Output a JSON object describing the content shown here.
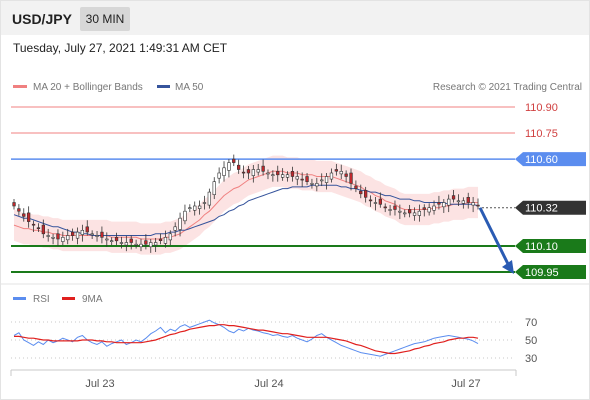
{
  "header": {
    "symbol": "USD/JPY",
    "timeframe": "30 MIN",
    "datetime": "Tuesday, July 27, 2021 1:49:31 AM CET"
  },
  "legend": {
    "ma20_label": "MA 20 + Bollinger Bands",
    "ma50_label": "MA 50",
    "credit": "Research © 2021 Trading Central"
  },
  "rsi_legend": {
    "rsi_label": "RSI",
    "ma_label": "9MA"
  },
  "colors": {
    "resistance": "#f08080",
    "pivot": "#5b8def",
    "support": "#1a7a1a",
    "current": "#333333",
    "candle_up": "#ffffff",
    "candle_down": "#c0282d",
    "bollinger": "#fcdede",
    "ma50": "#36549c",
    "arrow": "#2a5bb3",
    "rsi": "#5b8def",
    "rsi_ma": "#e0201e"
  },
  "chart_data": [
    {
      "type": "candlestick",
      "title": "USD/JPY",
      "ylim": [
        109.92,
        110.96
      ],
      "levels": [
        {
          "label": "110.90",
          "value": 110.9,
          "kind": "resistance"
        },
        {
          "label": "110.75",
          "value": 110.75,
          "kind": "resistance"
        },
        {
          "label": "110.60",
          "value": 110.6,
          "kind": "pivot"
        },
        {
          "label": "110.32",
          "value": 110.32,
          "kind": "current"
        },
        {
          "label": "110.10",
          "value": 110.1,
          "kind": "support"
        },
        {
          "label": "109.95",
          "value": 109.95,
          "kind": "support"
        }
      ],
      "x_ticks": [
        "Jul 23",
        "Jul 24",
        "Jul 27"
      ],
      "close": [
        110.33,
        110.3,
        110.27,
        110.24,
        110.22,
        110.2,
        110.17,
        110.16,
        110.15,
        110.14,
        110.15,
        110.16,
        110.16,
        110.18,
        110.19,
        110.18,
        110.17,
        110.16,
        110.15,
        110.14,
        110.13,
        110.13,
        110.12,
        110.12,
        110.12,
        110.11,
        110.11,
        110.11,
        110.12,
        110.12,
        110.13,
        110.15,
        110.17,
        110.21,
        110.26,
        110.3,
        110.32,
        110.33,
        110.33,
        110.35,
        110.41,
        110.47,
        110.52,
        110.55,
        110.58,
        110.58,
        110.54,
        110.52,
        110.52,
        110.54,
        110.54,
        110.53,
        110.52,
        110.51,
        110.51,
        110.51,
        110.51,
        110.5,
        110.5,
        110.48,
        110.47,
        110.46,
        110.46,
        110.48,
        110.5,
        110.52,
        110.53,
        110.53,
        110.5,
        110.46,
        110.43,
        110.4,
        110.38,
        110.36,
        110.35,
        110.34,
        110.32,
        110.31,
        110.31,
        110.3,
        110.29,
        110.29,
        110.29,
        110.3,
        110.31,
        110.32,
        110.33,
        110.34,
        110.35,
        110.37,
        110.37,
        110.36,
        110.36,
        110.35,
        110.35,
        110.33
      ],
      "ma20": [
        110.22,
        110.21,
        110.2,
        110.2,
        110.19,
        110.19,
        110.18,
        110.18,
        110.17,
        110.17,
        110.16,
        110.16,
        110.16,
        110.16,
        110.16,
        110.16,
        110.16,
        110.16,
        110.16,
        110.16,
        110.15,
        110.15,
        110.15,
        110.15,
        110.15,
        110.15,
        110.14,
        110.14,
        110.14,
        110.14,
        110.14,
        110.15,
        110.15,
        110.16,
        110.17,
        110.19,
        110.21,
        110.23,
        110.25,
        110.28,
        110.3,
        110.33,
        110.36,
        110.39,
        110.41,
        110.43,
        110.44,
        110.46,
        110.48,
        110.49,
        110.5,
        110.51,
        110.52,
        110.53,
        110.53,
        110.53,
        110.52,
        110.52,
        110.52,
        110.51,
        110.51,
        110.51,
        110.5,
        110.5,
        110.5,
        110.5,
        110.49,
        110.48,
        110.47,
        110.46,
        110.45,
        110.44,
        110.42,
        110.41,
        110.39,
        110.38,
        110.36,
        110.35,
        110.34,
        110.32,
        110.31,
        110.31,
        110.31,
        110.31,
        110.31,
        110.31,
        110.32,
        110.32,
        110.33,
        110.33,
        110.34,
        110.34,
        110.34,
        110.35,
        110.35,
        110.35
      ],
      "ma50": [
        110.28,
        110.27,
        110.26,
        110.26,
        110.25,
        110.24,
        110.23,
        110.22,
        110.21,
        110.21,
        110.2,
        110.19,
        110.18,
        110.18,
        110.17,
        110.17,
        110.16,
        110.16,
        110.16,
        110.16,
        110.16,
        110.16,
        110.16,
        110.16,
        110.16,
        110.16,
        110.16,
        110.16,
        110.16,
        110.17,
        110.17,
        110.17,
        110.18,
        110.18,
        110.19,
        110.19,
        110.2,
        110.21,
        110.22,
        110.23,
        110.24,
        110.25,
        110.27,
        110.28,
        110.3,
        110.31,
        110.33,
        110.34,
        110.36,
        110.37,
        110.38,
        110.39,
        110.4,
        110.41,
        110.42,
        110.43,
        110.43,
        110.44,
        110.44,
        110.44,
        110.44,
        110.45,
        110.45,
        110.45,
        110.45,
        110.45,
        110.45,
        110.44,
        110.44,
        110.43,
        110.43,
        110.42,
        110.42,
        110.41,
        110.41,
        110.4,
        110.39,
        110.39,
        110.38,
        110.37,
        110.37,
        110.37,
        110.36,
        110.36,
        110.35,
        110.35,
        110.35,
        110.35,
        110.35,
        110.34,
        110.34,
        110.34,
        110.34,
        110.34,
        110.34,
        110.33
      ],
      "forecast": {
        "from": 110.32,
        "to": 109.95
      }
    },
    {
      "type": "line",
      "title": "RSI",
      "ylim": [
        20,
        80
      ],
      "y_ticks": [
        70,
        50,
        30
      ],
      "series": [
        {
          "name": "RSI",
          "values": [
            55,
            58,
            50,
            47,
            44,
            48,
            45,
            50,
            47,
            49,
            52,
            50,
            48,
            53,
            55,
            50,
            47,
            45,
            48,
            43,
            46,
            48,
            50,
            45,
            47,
            50,
            48,
            52,
            57,
            60,
            64,
            58,
            62,
            60,
            65,
            67,
            64,
            66,
            68,
            70,
            72,
            69,
            67,
            64,
            60,
            58,
            62,
            60,
            63,
            61,
            60,
            58,
            57,
            55,
            56,
            54,
            53,
            55,
            52,
            50,
            48,
            51,
            55,
            57,
            53,
            50,
            47,
            44,
            42,
            40,
            38,
            36,
            35,
            34,
            33,
            32,
            34,
            36,
            38,
            40,
            42,
            44,
            46,
            47,
            48,
            50,
            52,
            53,
            54,
            55,
            54,
            53,
            52,
            51,
            49,
            46
          ]
        },
        {
          "name": "9MA",
          "values": [
            54,
            54,
            53,
            52,
            52,
            51,
            50,
            50,
            49,
            49,
            49,
            49,
            49,
            49,
            50,
            50,
            50,
            49,
            49,
            48,
            48,
            47,
            47,
            47,
            47,
            47,
            47,
            48,
            49,
            50,
            52,
            54,
            56,
            57,
            59,
            60,
            62,
            63,
            64,
            65,
            66,
            66,
            67,
            67,
            66,
            66,
            65,
            64,
            63,
            62,
            61,
            61,
            60,
            59,
            58,
            57,
            57,
            56,
            55,
            54,
            53,
            53,
            53,
            53,
            53,
            52,
            51,
            50,
            49,
            47,
            45,
            44,
            42,
            40,
            38,
            37,
            36,
            35,
            35,
            36,
            37,
            38,
            40,
            41,
            43,
            44,
            46,
            47,
            48,
            50,
            51,
            52,
            52,
            53,
            53,
            52
          ]
        }
      ]
    }
  ]
}
